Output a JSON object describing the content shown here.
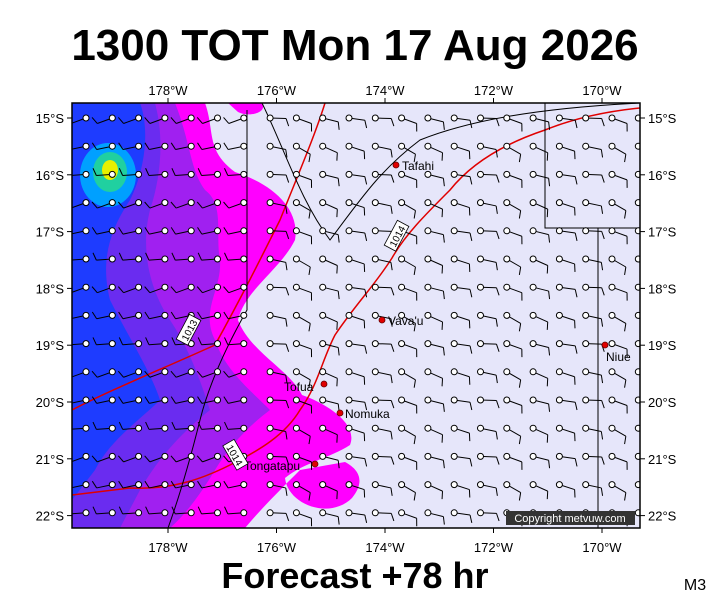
{
  "title": "1300 TOT Mon 17 Aug 2026",
  "footer": "Forecast +78 hr",
  "panel_code": "M3",
  "copyright": "Copyright metvuw.com",
  "longitude_labels": [
    "178°W",
    "176°W",
    "174°W",
    "172°W",
    "170°W"
  ],
  "latitude_labels": [
    "15°S",
    "16°S",
    "17°S",
    "18°S",
    "19°S",
    "20°S",
    "21°S",
    "22°S"
  ],
  "places": [
    {
      "label": "Tafahi"
    },
    {
      "label": "Vava'u"
    },
    {
      "label": "Niue"
    },
    {
      "label": "Tofua"
    },
    {
      "label": "Nomuka"
    },
    {
      "label": "Tongatapu"
    }
  ],
  "isobar_labels": [
    "1014",
    "1013",
    "1014"
  ]
}
